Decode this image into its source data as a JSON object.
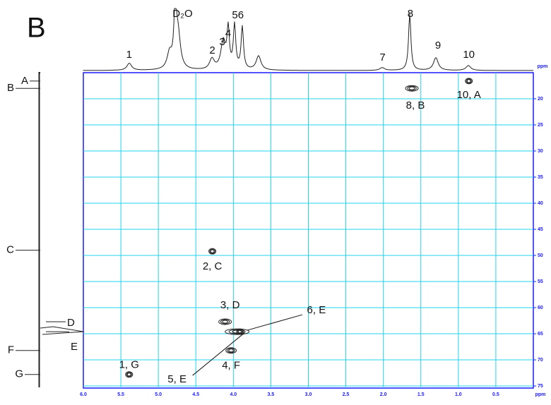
{
  "panel_label": "B",
  "chart_data": {
    "type": "scatter",
    "x_unit": "ppm",
    "top_unit": "ppm",
    "xlim": [
      6,
      0
    ],
    "xticks": [
      {
        "value": 6,
        "label": "6.0"
      },
      5.5,
      {
        "value": 5,
        "label": "5.0"
      },
      4.5,
      {
        "value": 4,
        "label": "4.0"
      },
      3.5,
      {
        "value": 3,
        "label": "3.0"
      },
      2.5,
      {
        "value": 2,
        "label": "2.0"
      },
      1.5,
      {
        "value": 1,
        "label": "1.0"
      },
      0.5
    ],
    "ylim": [
      15,
      75.4
    ],
    "yticks": [
      20,
      25,
      30,
      35,
      40,
      45,
      50,
      55,
      60,
      65,
      70,
      75
    ],
    "grid": true,
    "grid_color": "#22d3ee",
    "axis_color": "#1a1aff",
    "color": "#222222",
    "x": [
      5.39,
      4.28,
      4.11,
      4.03,
      3.95,
      3.91,
      1.62,
      0.86
    ],
    "y": [
      72.8,
      49.2,
      62.7,
      68.2,
      64.6,
      64.6,
      18,
      16.6
    ],
    "point_labels": [
      "1, G",
      "2, C",
      "3, D",
      "4, F",
      "5, E",
      "6, E",
      "8, B",
      "10, A"
    ],
    "proton_peaks": {
      "labels": [
        "1",
        "D₂O",
        "2",
        "3",
        "4",
        "56",
        "7",
        "8",
        "9",
        "10"
      ],
      "ppm": [
        5.39,
        4.79,
        4.28,
        4.13,
        4.05,
        3.94,
        2.01,
        1.64,
        1.29,
        0.86
      ]
    },
    "carbon_peaks": {
      "labels": [
        "A",
        "B",
        "C",
        "D",
        "E",
        "F",
        "G"
      ],
      "ppm": [
        16.6,
        18,
        49,
        62.7,
        64.6,
        68.2,
        72.8
      ]
    }
  }
}
